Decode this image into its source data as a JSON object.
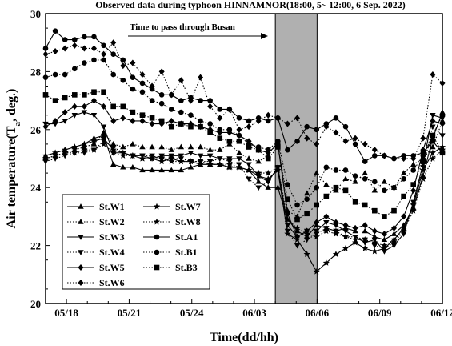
{
  "chart_data": {
    "type": "line",
    "title": "Observed data during typhoon HINNAMNOR(18:00, 5~ 12:00, 6  Sep. 2022)",
    "xlabel": "Time(dd/hh)",
    "ylabel_main": "Air temperature(T",
    "ylabel_sub": "a",
    "ylabel_tail": ", deg.)",
    "ylim": [
      20,
      30
    ],
    "yticks": [
      20,
      22,
      24,
      26,
      28,
      30
    ],
    "xlim": [
      0,
      19
    ],
    "xticks": [
      {
        "pos": 1,
        "label": "05/18"
      },
      {
        "pos": 4,
        "label": "05/21"
      },
      {
        "pos": 7,
        "label": "05/24"
      },
      {
        "pos": 10,
        "label": "06/03"
      },
      {
        "pos": 13,
        "label": "06/06"
      },
      {
        "pos": 16,
        "label": "06/09"
      },
      {
        "pos": 19,
        "label": "06/12"
      }
    ],
    "annotation": {
      "text": "Time to pass through Busan",
      "shade_from": 11,
      "shade_to": 13
    },
    "legend_position": "bottom-left",
    "series": [
      {
        "name": "St.W1",
        "marker": "triangle-up",
        "dash": "solid",
        "y": [
          25.1,
          25.2,
          25.3,
          25.4,
          25.5,
          25.7,
          25.8,
          24.8,
          24.7,
          24.7,
          24.6,
          24.6,
          24.6,
          24.6,
          24.6,
          24.7,
          24.8,
          24.8,
          24.8,
          24.7,
          24.7,
          24.6,
          24.2,
          24.0,
          24.0,
          22.9,
          22.5,
          22.3,
          22.7,
          22.6,
          22.5,
          22.6,
          22.5,
          22.5,
          22.3,
          22.2,
          22.4,
          22.7,
          23.3,
          24.4,
          25.7,
          26.6
        ]
      },
      {
        "name": "St.W2",
        "marker": "triangle-up",
        "dash": "dotted",
        "y": [
          25.0,
          25.1,
          25.2,
          25.3,
          25.4,
          25.5,
          25.9,
          25.5,
          25.4,
          25.5,
          25.4,
          25.4,
          25.4,
          25.3,
          25.4,
          25.4,
          25.4,
          25.3,
          25.3,
          25.5,
          25.2,
          25.0,
          24.9,
          25.1,
          25.6,
          23.2,
          23.0,
          23.8,
          24.5,
          24.1,
          23.9,
          24.3,
          24.2,
          24.5,
          23.9,
          24.2,
          24.0,
          24.5,
          24.8,
          25.0,
          25.4,
          26.3
        ]
      },
      {
        "name": "St.W3",
        "marker": "triangle-down",
        "dash": "solid",
        "y": [
          26.2,
          26.2,
          26.3,
          26.5,
          26.6,
          26.5,
          26.1,
          25.2,
          25.2,
          25.1,
          25.1,
          25.0,
          25.1,
          25.1,
          25.1,
          25.2,
          25.1,
          25.1,
          25.0,
          25.0,
          25.0,
          24.8,
          24.4,
          24.2,
          24.7,
          22.7,
          22.3,
          22.5,
          22.5,
          22.8,
          22.7,
          22.5,
          22.3,
          22.1,
          22.2,
          21.8,
          22.0,
          22.4,
          23.5,
          24.8,
          26.5,
          26.4
        ]
      },
      {
        "name": "St.W4",
        "marker": "triangle-down",
        "dash": "dotted",
        "y": [
          24.9,
          25.0,
          25.1,
          25.2,
          25.2,
          25.3,
          25.6,
          25.4,
          25.2,
          25.1,
          25.1,
          25.1,
          25.0,
          25.0,
          25.0,
          24.9,
          24.9,
          24.9,
          25.0,
          24.9,
          24.8,
          24.3,
          24.0,
          24.2,
          24.7,
          22.5,
          22.0,
          22.2,
          22.4,
          22.6,
          22.5,
          22.3,
          22.3,
          22.2,
          22.0,
          21.9,
          22.1,
          22.5,
          23.4,
          24.7,
          26.1,
          25.8
        ]
      },
      {
        "name": "St.W5",
        "marker": "diamond",
        "dash": "solid",
        "y": [
          26.1,
          26.3,
          26.6,
          26.8,
          26.8,
          27.0,
          26.8,
          26.3,
          26.4,
          26.3,
          26.3,
          26.2,
          26.2,
          26.3,
          26.2,
          26.2,
          26.1,
          26.0,
          25.9,
          25.9,
          25.8,
          25.6,
          25.3,
          25.2,
          25.5,
          23.1,
          22.3,
          22.5,
          22.8,
          23.0,
          22.8,
          22.7,
          22.6,
          22.7,
          22.5,
          22.4,
          22.6,
          23.0,
          23.9,
          25.3,
          26.3,
          26.2
        ]
      },
      {
        "name": "St.W6",
        "marker": "diamond",
        "dash": "dotted",
        "y": [
          28.6,
          28.7,
          28.8,
          28.9,
          28.8,
          28.8,
          28.6,
          29.0,
          28.2,
          28.3,
          27.9,
          27.5,
          28.0,
          27.2,
          27.7,
          27.0,
          27.8,
          26.8,
          26.4,
          26.7,
          26.0,
          26.1,
          26.3,
          26.5,
          26.4,
          26.2,
          26.4,
          25.7,
          25.5,
          26.1,
          25.9,
          25.6,
          25.7,
          25.5,
          25.3,
          25.1,
          25.0,
          25.0,
          25.0,
          25.7,
          27.9,
          27.6
        ]
      },
      {
        "name": "St.W7",
        "marker": "star-line",
        "dash": "solid",
        "y": [
          25.1,
          25.2,
          25.3,
          25.4,
          25.5,
          25.6,
          25.7,
          25.3,
          25.2,
          25.1,
          25.0,
          25.0,
          24.9,
          25.0,
          24.9,
          24.9,
          24.8,
          24.8,
          24.8,
          24.7,
          24.7,
          24.6,
          24.4,
          24.3,
          24.6,
          22.4,
          22.2,
          21.7,
          21.1,
          21.4,
          21.7,
          21.9,
          22.1,
          21.9,
          21.8,
          21.9,
          22.2,
          22.6,
          23.4,
          24.6,
          25.2,
          25.4
        ]
      },
      {
        "name": "St.W8",
        "marker": "star",
        "dash": "dotted",
        "y": [
          25.0,
          25.1,
          25.2,
          25.2,
          25.3,
          25.3,
          25.5,
          25.2,
          25.1,
          25.1,
          25.0,
          25.0,
          25.0,
          24.9,
          24.9,
          24.9,
          24.9,
          24.8,
          24.8,
          24.8,
          24.7,
          24.6,
          24.5,
          24.5,
          24.7,
          22.9,
          22.6,
          22.4,
          22.3,
          22.5,
          22.4,
          22.3,
          22.2,
          22.2,
          22.1,
          22.0,
          22.2,
          22.5,
          23.2,
          24.3,
          25.0,
          25.3
        ]
      },
      {
        "name": "St.A1",
        "marker": "circle",
        "dash": "solid",
        "y": [
          28.8,
          29.4,
          29.1,
          29.1,
          29.2,
          29.2,
          28.9,
          28.6,
          28.4,
          27.8,
          27.6,
          27.4,
          27.2,
          27.2,
          27.0,
          27.1,
          27.0,
          27.0,
          26.7,
          26.7,
          26.4,
          26.3,
          26.4,
          26.3,
          26.4,
          25.3,
          25.6,
          26.1,
          26.0,
          26.2,
          26.4,
          26.1,
          25.5,
          24.9,
          25.1,
          25.1,
          25.0,
          25.1,
          25.1,
          25.2,
          25.6,
          25.2
        ]
      },
      {
        "name": "St.B1",
        "marker": "circle",
        "dash": "dotted",
        "y": [
          27.8,
          27.9,
          27.9,
          28.1,
          28.3,
          28.4,
          28.4,
          27.9,
          27.7,
          27.4,
          27.3,
          27.0,
          26.9,
          26.7,
          26.6,
          26.5,
          26.3,
          26.2,
          26.0,
          26.0,
          25.8,
          25.5,
          25.4,
          25.3,
          25.6,
          24.1,
          23.4,
          23.6,
          24.0,
          24.7,
          24.6,
          24.6,
          24.4,
          24.3,
          24.2,
          23.9,
          24.0,
          24.3,
          24.6,
          25.1,
          25.8,
          26.5
        ]
      },
      {
        "name": "St.B3",
        "marker": "square",
        "dash": "dotted",
        "y": [
          27.2,
          27.0,
          27.1,
          27.2,
          27.2,
          27.3,
          27.3,
          26.8,
          26.8,
          26.6,
          26.5,
          26.4,
          26.3,
          26.1,
          26.2,
          26.1,
          26.1,
          25.9,
          25.7,
          25.6,
          25.6,
          25.4,
          25.3,
          25.0,
          25.4,
          23.6,
          22.9,
          23.1,
          23.4,
          23.7,
          24.0,
          23.9,
          23.5,
          23.4,
          23.2,
          23.0,
          23.2,
          23.7,
          24.1,
          24.9,
          25.8,
          25.2
        ]
      }
    ]
  }
}
